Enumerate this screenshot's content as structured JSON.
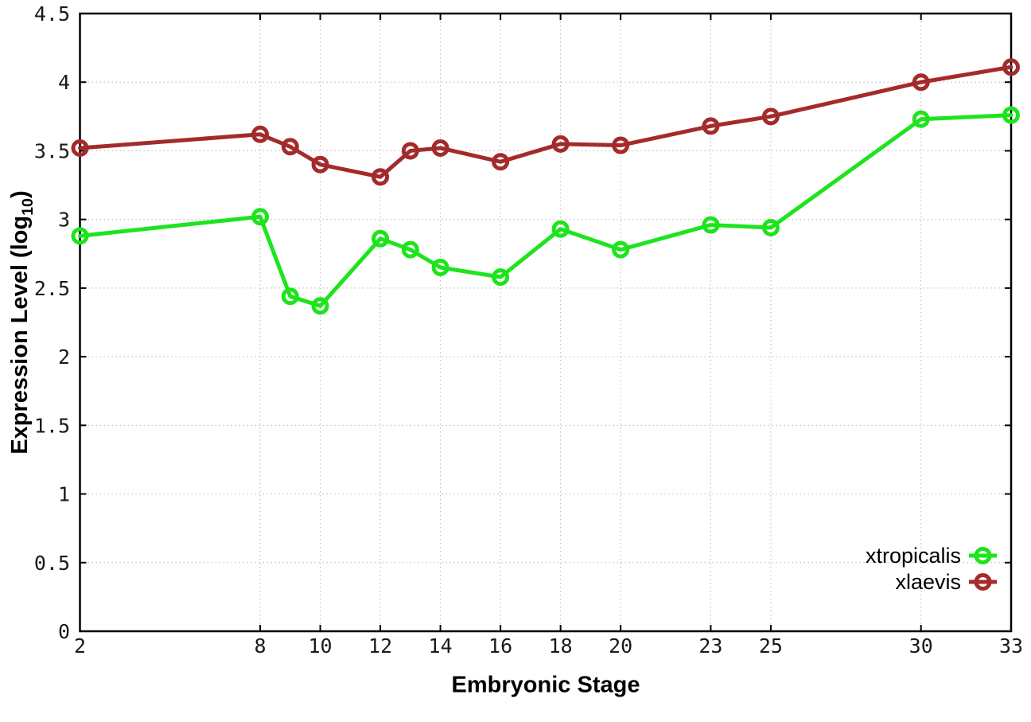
{
  "chart_data": {
    "type": "line",
    "title": "",
    "xlabel": "Embryonic Stage",
    "ylabel": "Expression Level (log10)",
    "ylabel_parts": {
      "prefix": "Expression Level (log",
      "sub": "10",
      "suffix": ")"
    },
    "x": [
      2,
      8,
      9,
      10,
      12,
      13,
      14,
      16,
      18,
      20,
      23,
      25,
      30,
      33
    ],
    "series": [
      {
        "name": "xtropicalis",
        "color": "#1de41d",
        "values": [
          2.88,
          3.02,
          2.44,
          2.37,
          2.86,
          2.78,
          2.65,
          2.58,
          2.93,
          2.78,
          2.96,
          2.94,
          3.73,
          3.76
        ]
      },
      {
        "name": "xlaevis",
        "color": "#a32b2b",
        "values": [
          3.52,
          3.62,
          3.53,
          3.4,
          3.31,
          3.5,
          3.52,
          3.42,
          3.55,
          3.54,
          3.68,
          3.75,
          4.0,
          4.11
        ]
      }
    ],
    "xlim": [
      2,
      33
    ],
    "ylim": [
      0,
      4.5
    ],
    "xtick_values": [
      2,
      8,
      10,
      12,
      14,
      16,
      18,
      20,
      23,
      25,
      30,
      33
    ],
    "xtick_labels": [
      "2",
      "8",
      "10",
      "12",
      "14",
      "16",
      "18",
      "20",
      "23",
      "25",
      "30",
      "33"
    ],
    "ytick_values": [
      0,
      0.5,
      1,
      1.5,
      2,
      2.5,
      3,
      3.5,
      4,
      4.5
    ],
    "ytick_labels": [
      "0",
      "0.5",
      "1",
      "1.5",
      "2",
      "2.5",
      "3",
      "3.5",
      "4",
      "4.5"
    ],
    "grid": true,
    "legend_position": "inside-bottom-right",
    "marker": "open-circle",
    "colors": {
      "background": "#ffffff",
      "grid": "#b8b8b8",
      "axis": "#000000",
      "tick_text": "#1a1a1a"
    }
  }
}
